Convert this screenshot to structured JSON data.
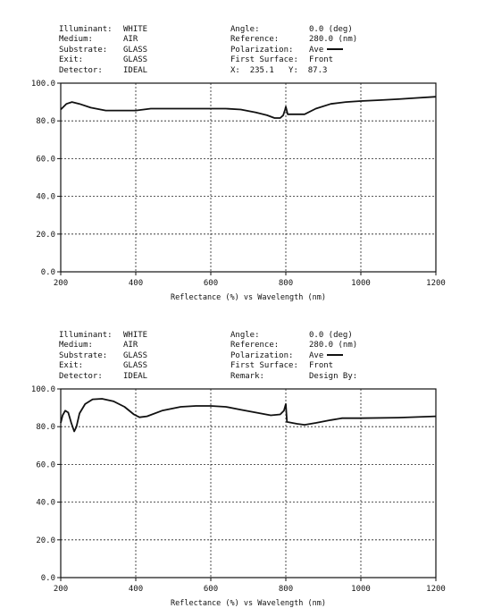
{
  "chart_data": [
    {
      "type": "line",
      "header": {
        "left": [
          {
            "label": "Illuminant:",
            "value": "WHITE"
          },
          {
            "label": "Medium:",
            "value": "AIR"
          },
          {
            "label": "Substrate:",
            "value": "GLASS"
          },
          {
            "label": "Exit:",
            "value": "GLASS"
          },
          {
            "label": "Detector:",
            "value": "IDEAL"
          }
        ],
        "right": [
          {
            "label": "Angle:",
            "value": "0.0 (deg)"
          },
          {
            "label": "Reference:",
            "value": "280.0 (nm)"
          },
          {
            "label": "Polarization:",
            "value": "Ave"
          },
          {
            "label": "First Surface:",
            "value": "Front"
          },
          {
            "label": "X:",
            "value": "235.1",
            "label2": "Y:",
            "value2": "87.3"
          }
        ]
      },
      "xlabel": "Reflectance (%) vs Wavelength (nm)",
      "xlim": [
        200,
        1200
      ],
      "ylim": [
        0,
        100
      ],
      "xticks": [
        "200",
        "400",
        "600",
        "800",
        "1000",
        "1200"
      ],
      "yticks": [
        "0.0",
        "20.0",
        "40.0",
        "60.0",
        "80.0",
        "100.0"
      ],
      "grid": true,
      "series": [
        {
          "color": "#111111",
          "x": [
            200,
            215,
            230,
            250,
            280,
            320,
            360,
            400,
            440,
            480,
            520,
            560,
            600,
            640,
            680,
            720,
            750,
            770,
            785,
            793,
            798,
            800,
            805,
            850,
            880,
            920,
            960,
            1000,
            1050,
            1100,
            1150,
            1200
          ],
          "y": [
            86,
            89,
            90,
            89,
            87,
            85.5,
            85.5,
            85.5,
            86.5,
            86.5,
            86.5,
            86.5,
            86.5,
            86.5,
            86,
            84.5,
            83,
            81.5,
            81.5,
            83,
            86,
            87.5,
            83.5,
            83.5,
            86.5,
            89,
            90,
            90.5,
            91,
            91.5,
            92.2,
            92.8
          ]
        }
      ]
    },
    {
      "type": "line",
      "header": {
        "left": [
          {
            "label": "Illuminant:",
            "value": "WHITE"
          },
          {
            "label": "Medium:",
            "value": "AIR"
          },
          {
            "label": "Substrate:",
            "value": "GLASS"
          },
          {
            "label": "Exit:",
            "value": "GLASS"
          },
          {
            "label": "Detector:",
            "value": "IDEAL"
          }
        ],
        "right": [
          {
            "label": "Angle:",
            "value": "0.0 (deg)"
          },
          {
            "label": "Reference:",
            "value": "280.0 (nm)"
          },
          {
            "label": "Polarization:",
            "value": "Ave"
          },
          {
            "label": "First Surface:",
            "value": "Front"
          },
          {
            "label": "Remark:",
            "value": "Design By:"
          }
        ]
      },
      "xlabel": "Reflectance (%) vs Wavelength (nm)",
      "xlim": [
        200,
        1200
      ],
      "ylim": [
        0,
        100
      ],
      "xticks": [
        "200",
        "400",
        "600",
        "800",
        "1000",
        "1200"
      ],
      "yticks": [
        "0.0",
        "20.0",
        "40.0",
        "60.0",
        "80.0",
        "100.0"
      ],
      "grid": true,
      "series": [
        {
          "color": "#111111",
          "x": [
            200,
            205,
            212,
            220,
            228,
            236,
            242,
            250,
            265,
            285,
            310,
            340,
            370,
            395,
            410,
            430,
            470,
            520,
            560,
            600,
            640,
            680,
            720,
            760,
            785,
            795,
            800,
            803,
            830,
            850,
            880,
            920,
            950,
            1000,
            1100,
            1200
          ],
          "y": [
            82,
            86,
            88.5,
            87.5,
            82,
            77.5,
            80,
            87,
            92,
            94.5,
            94.8,
            93.5,
            90.5,
            86.5,
            85,
            85.5,
            88.5,
            90.5,
            91,
            91,
            90.5,
            89,
            87.5,
            86,
            86.5,
            88.5,
            92,
            82.5,
            81.5,
            81,
            82,
            83.5,
            84.5,
            84.5,
            84.8,
            85.5
          ]
        }
      ]
    }
  ]
}
